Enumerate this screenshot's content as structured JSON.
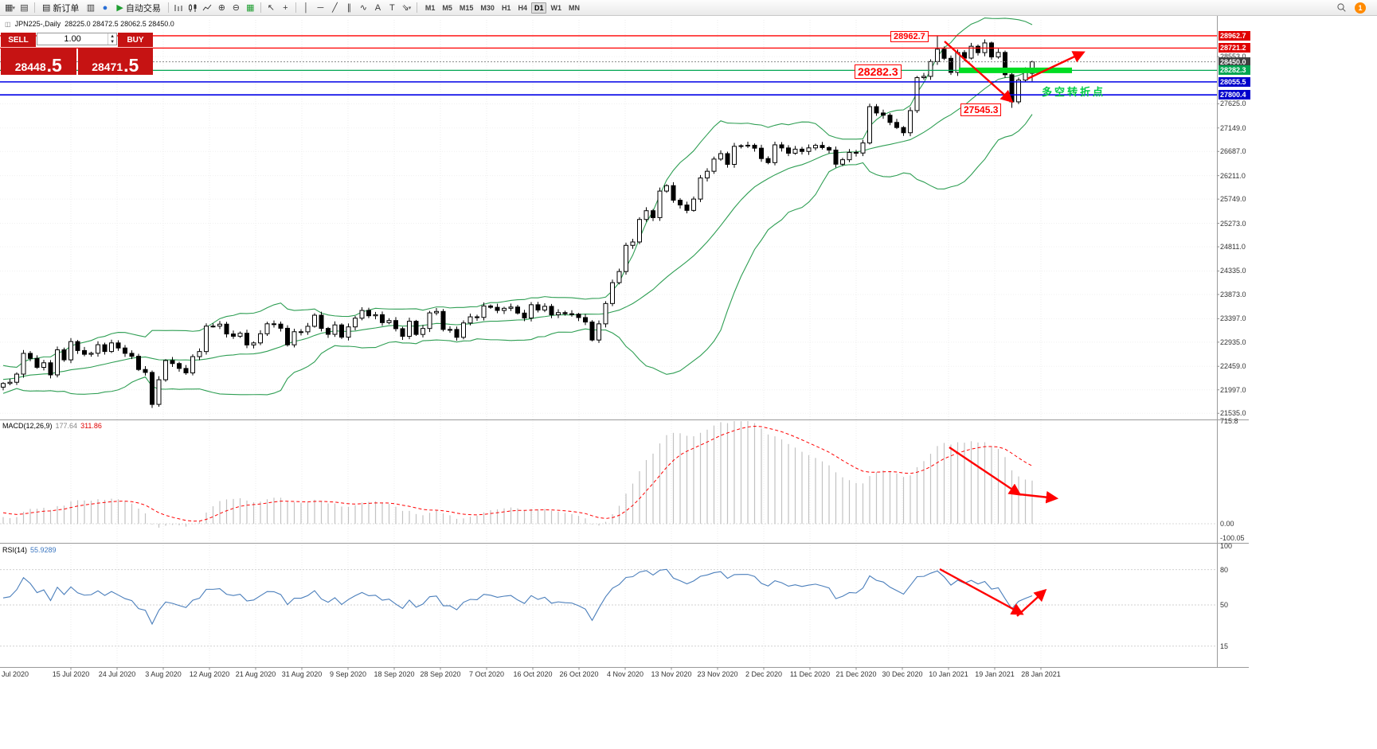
{
  "colors": {
    "accent_red": "#c61313",
    "line_red": "#ff0000",
    "line_blue": "#0000e6",
    "line_green": "#00a651",
    "thick_green": "#00dd22",
    "band_green": "#2e9e53",
    "macd_hist": "#c2c2c2",
    "macd_signal": "#ff0000",
    "rsi_line": "#4a7ebb",
    "annotation_green": "#00cc44",
    "badge_orange": "#ff8a00"
  },
  "icons": {
    "new_chart": "▦",
    "profiles": "▤",
    "new_order_doc": "▤",
    "print": "▥",
    "navigator": "●",
    "autotrade_play": "▶",
    "zoom_in": "⊕",
    "zoom_out": "⊖",
    "indicators": "▦",
    "cursor": "↖",
    "crosshair": "+",
    "vline": "│",
    "hline": "─",
    "tline": "╱",
    "channel": "∥",
    "cycles": "∿",
    "text_tool": "A",
    "label_tool": "T",
    "arrows_tool": "⇘",
    "drop": "▾"
  },
  "toolbar": {
    "new_order_label": "新订单",
    "autotrade_label": "自动交易",
    "timeframes": [
      "M1",
      "M5",
      "M15",
      "M30",
      "H1",
      "H4",
      "D1",
      "W1",
      "MN"
    ],
    "active_timeframe": "D1",
    "notification_count": "1"
  },
  "chart_header": {
    "symbol": "JPN225-,Daily",
    "ohlc_text": "28225.0 28472.5 28062.5 28450.0"
  },
  "trade_panel": {
    "sell_label": "SELL",
    "buy_label": "BUY",
    "volume": "1.00",
    "sell_price_int": "28448",
    "sell_price_frac": ".5",
    "buy_price_int": "28471",
    "buy_price_frac": ".5"
  },
  "annotations": {
    "peak": "28962.7",
    "level": "28282.3",
    "low": "27545.3",
    "turning_point": "多空转折点"
  },
  "price_axis": {
    "ticks": [
      "28553.0",
      "27625.0",
      "27149.0",
      "26687.0",
      "26211.0",
      "25749.0",
      "25273.0",
      "24811.0",
      "24335.0",
      "23873.0",
      "23397.0",
      "22935.0",
      "22459.0",
      "21997.0",
      "21535.0"
    ],
    "lines": [
      {
        "price": 28962.7,
        "label": "28962.7",
        "color": "#ff0000",
        "width": 1.3,
        "label_bg": "#e00000"
      },
      {
        "price": 28721.2,
        "label": "28721.2",
        "color": "#ff0000",
        "width": 1.3,
        "label_bg": "#e00000"
      },
      {
        "price": 28450.0,
        "label": "28450.0",
        "color": "#8a8a8a",
        "width": 1,
        "dash": "2,2",
        "label_bg": "#404040"
      },
      {
        "price": 28282.3,
        "label": "28282.3",
        "color": "#00a651",
        "width": 1.3,
        "label_bg": "#00a651"
      },
      {
        "price": 28055.5,
        "label": "28055.5",
        "color": "#0000e6",
        "width": 1.6,
        "label_bg": "#0000cc"
      },
      {
        "price": 27800.4,
        "label": "27800.4",
        "color": "#0000e6",
        "width": 1.6,
        "label_bg": "#0000cc"
      }
    ]
  },
  "macd_panel": {
    "name": "MACD(12,26,9)",
    "value_main": "177.64",
    "value_signal": "311.86",
    "axis_labels": [
      {
        "v": 715.8,
        "t": "715.8"
      },
      {
        "v": 0,
        "t": "0.00"
      },
      {
        "v": -100.05,
        "t": "-100.05"
      }
    ]
  },
  "rsi_panel": {
    "name": "RSI(14)",
    "value": "55.9289",
    "axis_labels": [
      {
        "v": 100,
        "t": "100"
      },
      {
        "v": 80,
        "t": "80"
      },
      {
        "v": 50,
        "t": "50"
      },
      {
        "v": 15,
        "t": "15"
      }
    ],
    "levels": [
      80,
      50,
      15
    ]
  },
  "time_axis": {
    "first_partial": "Jul 2020",
    "labels": [
      "15 Jul 2020",
      "24 Jul 2020",
      "3 Aug 2020",
      "12 Aug 2020",
      "21 Aug 2020",
      "31 Aug 2020",
      "9 Sep 2020",
      "18 Sep 2020",
      "28 Sep 2020",
      "7 Oct 2020",
      "16 Oct 2020",
      "26 Oct 2020",
      "4 Nov 2020",
      "13 Nov 2020",
      "23 Nov 2020",
      "2 Dec 2020",
      "11 Dec 2020",
      "21 Dec 2020",
      "30 Dec 2020",
      "10 Jan 2021",
      "19 Jan 2021",
      "28 Jan 2021"
    ]
  },
  "chart_data": {
    "type": "candlestick",
    "symbol": "JPN225-",
    "timeframe": "Daily",
    "visible_price_range": [
      21535.0,
      28962.7
    ],
    "bollinger": {
      "period": 20,
      "deviation": 2
    },
    "macd": {
      "fast": 12,
      "slow": 26,
      "signal": 9
    },
    "rsi": {
      "period": 14
    },
    "pre_series": [
      21900,
      21950,
      22050,
      22150,
      22250,
      22300,
      22200,
      22150,
      22250,
      22350,
      22450,
      22400,
      22300,
      22250,
      22200,
      22300,
      22250,
      22150,
      22050
    ],
    "closes": [
      22122,
      22146,
      22306,
      22714,
      22615,
      22439,
      22529,
      22291,
      22784,
      22587,
      22946,
      22770,
      22696,
      22717,
      22884,
      22751,
      22920,
      22820,
      22715,
      22657,
      22397,
      22339,
      21710,
      22195,
      22573,
      22514,
      22418,
      22330,
      22650,
      22750,
      23250,
      23250,
      23289,
      23096,
      23051,
      23110,
      22880,
      22920,
      23100,
      23296,
      23290,
      23208,
      22882,
      23140,
      23138,
      23247,
      23465,
      23205,
      23089,
      23274,
      23033,
      23235,
      23406,
      23559,
      23454,
      23475,
      23319,
      23360,
      23200,
      23050,
      23346,
      23087,
      23204,
      23511,
      23539,
      23185,
      23185,
      23030,
      23312,
      23433,
      23422,
      23647,
      23620,
      23559,
      23601,
      23626,
      23507,
      23410,
      23671,
      23567,
      23639,
      23474,
      23516,
      23494,
      23485,
      23419,
      23331,
      22977,
      23295,
      23695,
      24105,
      24325,
      24839,
      24906,
      25349,
      25521,
      25385,
      25907,
      26014,
      25728,
      25634,
      25527,
      25750,
      26165,
      26297,
      26537,
      26644,
      26433,
      26787,
      26800,
      26809,
      26751,
      26547,
      26467,
      26817,
      26756,
      26652,
      26732,
      26687,
      26757,
      26806,
      26763,
      26714,
      26436,
      26524,
      26668,
      26656,
      26854,
      27568,
      27444,
      27400,
      27258,
      27158,
      27055,
      27490,
      28139,
      28164,
      28456,
      28698,
      28519,
      28242,
      28633,
      28523,
      28756,
      28631,
      28822,
      28546,
      28635,
      28197,
      27663,
      28091,
      28280,
      28450
    ],
    "current_bar": {
      "open": 28225.0,
      "high": 28472.5,
      "low": 28062.5,
      "close": 28450.0
    },
    "annotated_high": 28962.7,
    "annotated_low": 27545.3,
    "high_bar_offset_from_end": 14,
    "low_bar_offset_from_end": 3,
    "support_level": 28282.3,
    "resistance_levels": [
      28962.7,
      28721.2
    ],
    "blue_levels": [
      28055.5,
      27800.4
    ]
  }
}
